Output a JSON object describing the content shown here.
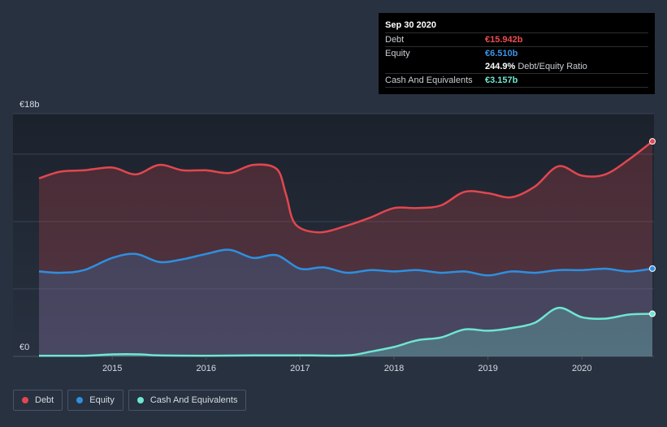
{
  "tooltip": {
    "date": "Sep 30 2020",
    "debt_label": "Debt",
    "debt_value": "€15.942b",
    "equity_label": "Equity",
    "equity_value": "€6.510b",
    "ratio_value": "244.9%",
    "ratio_label": "Debt/Equity Ratio",
    "cash_label": "Cash And Equivalents",
    "cash_value": "€3.157b"
  },
  "legend": {
    "debt": "Debt",
    "equity": "Equity",
    "cash": "Cash And Equivalents"
  },
  "colors": {
    "debt": "#e2474f",
    "equity": "#2f8fe0",
    "cash": "#6ee6d2",
    "debt_text": "#ef4c50",
    "equity_text": "#3b95e6",
    "cash_text": "#6ee6d2"
  },
  "chart_data": {
    "type": "area",
    "title": "",
    "ylim": [
      0,
      18
    ],
    "y_unit": "€b",
    "y_tick_labels": [
      {
        "value": 18,
        "label": "€18b"
      },
      {
        "value": 0,
        "label": "€0"
      }
    ],
    "xlim": [
      2014.22,
      2020.75
    ],
    "x_ticks": [
      2015,
      2016,
      2017,
      2018,
      2019,
      2020
    ],
    "x_tick_labels": [
      "2015",
      "2016",
      "2017",
      "2018",
      "2019",
      "2020"
    ],
    "series": [
      {
        "name": "Debt",
        "points": [
          [
            2014.22,
            13.2
          ],
          [
            2014.45,
            13.7
          ],
          [
            2014.7,
            13.8
          ],
          [
            2015.0,
            14.0
          ],
          [
            2015.25,
            13.5
          ],
          [
            2015.5,
            14.2
          ],
          [
            2015.75,
            13.8
          ],
          [
            2016.0,
            13.8
          ],
          [
            2016.25,
            13.6
          ],
          [
            2016.5,
            14.2
          ],
          [
            2016.75,
            13.9
          ],
          [
            2016.85,
            12.0
          ],
          [
            2016.95,
            9.8
          ],
          [
            2017.2,
            9.2
          ],
          [
            2017.5,
            9.7
          ],
          [
            2017.75,
            10.3
          ],
          [
            2018.0,
            11.0
          ],
          [
            2018.25,
            11.0
          ],
          [
            2018.5,
            11.2
          ],
          [
            2018.75,
            12.2
          ],
          [
            2019.0,
            12.1
          ],
          [
            2019.25,
            11.8
          ],
          [
            2019.5,
            12.6
          ],
          [
            2019.75,
            14.1
          ],
          [
            2020.0,
            13.4
          ],
          [
            2020.25,
            13.5
          ],
          [
            2020.5,
            14.6
          ],
          [
            2020.75,
            15.942
          ]
        ]
      },
      {
        "name": "Equity",
        "points": [
          [
            2014.22,
            6.3
          ],
          [
            2014.45,
            6.2
          ],
          [
            2014.7,
            6.4
          ],
          [
            2015.0,
            7.3
          ],
          [
            2015.25,
            7.6
          ],
          [
            2015.5,
            7.0
          ],
          [
            2015.75,
            7.2
          ],
          [
            2016.0,
            7.6
          ],
          [
            2016.25,
            7.9
          ],
          [
            2016.5,
            7.3
          ],
          [
            2016.75,
            7.5
          ],
          [
            2017.0,
            6.5
          ],
          [
            2017.25,
            6.6
          ],
          [
            2017.5,
            6.2
          ],
          [
            2017.75,
            6.4
          ],
          [
            2018.0,
            6.3
          ],
          [
            2018.25,
            6.4
          ],
          [
            2018.5,
            6.2
          ],
          [
            2018.75,
            6.3
          ],
          [
            2019.0,
            6.0
          ],
          [
            2019.25,
            6.3
          ],
          [
            2019.5,
            6.2
          ],
          [
            2019.75,
            6.4
          ],
          [
            2020.0,
            6.4
          ],
          [
            2020.25,
            6.5
          ],
          [
            2020.5,
            6.3
          ],
          [
            2020.75,
            6.51
          ]
        ]
      },
      {
        "name": "Cash And Equivalents",
        "points": [
          [
            2014.22,
            0.05
          ],
          [
            2014.7,
            0.05
          ],
          [
            2015.0,
            0.15
          ],
          [
            2015.3,
            0.15
          ],
          [
            2015.5,
            0.07
          ],
          [
            2016.0,
            0.05
          ],
          [
            2016.5,
            0.07
          ],
          [
            2017.0,
            0.08
          ],
          [
            2017.5,
            0.07
          ],
          [
            2017.75,
            0.35
          ],
          [
            2018.0,
            0.7
          ],
          [
            2018.25,
            1.2
          ],
          [
            2018.5,
            1.4
          ],
          [
            2018.75,
            2.0
          ],
          [
            2019.0,
            1.9
          ],
          [
            2019.25,
            2.1
          ],
          [
            2019.5,
            2.5
          ],
          [
            2019.75,
            3.6
          ],
          [
            2020.0,
            2.9
          ],
          [
            2020.25,
            2.8
          ],
          [
            2020.5,
            3.1
          ],
          [
            2020.75,
            3.157
          ]
        ]
      }
    ]
  }
}
